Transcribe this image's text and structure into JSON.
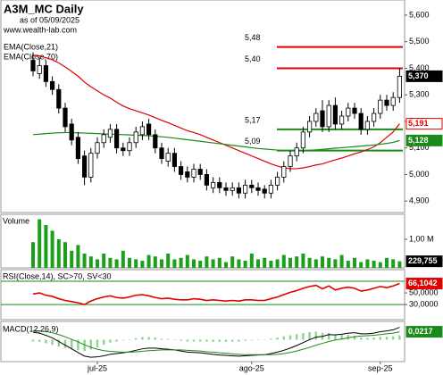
{
  "chart_data": [
    {
      "type": "candlestick",
      "title": "A3M_MC Daily",
      "subtitle": "as of 05/09/2025",
      "source": "www.wealth-lab.com",
      "categories": [
        null,
        null,
        null,
        null,
        null,
        null,
        null,
        null,
        null,
        null,
        "jul-25",
        null,
        null,
        null,
        null,
        null,
        null,
        null,
        null,
        null,
        null,
        null,
        null,
        null,
        null,
        null,
        null,
        null,
        null,
        null,
        null,
        null,
        null,
        null,
        "ago-25",
        null,
        null,
        null,
        null,
        null,
        null,
        null,
        null,
        null,
        null,
        null,
        null,
        null,
        null,
        null,
        null,
        null,
        null,
        null,
        "sep-25",
        null,
        null,
        null
      ],
      "open": [
        5430,
        5380,
        5410,
        5350,
        5320,
        5250,
        5190,
        5140,
        5070,
        4990,
        5080,
        5120,
        5140,
        5170,
        5100,
        5090,
        5120,
        5150,
        5190,
        5150,
        5100,
        5050,
        5080,
        5030,
        5010,
        4990,
        5020,
        5000,
        4950,
        4970,
        4950,
        4940,
        4950,
        4930,
        4960,
        4950,
        4945,
        4930,
        4960,
        4990,
        5030,
        5070,
        5100,
        5160,
        5200,
        5240,
        5180,
        5260,
        5190,
        5220,
        5250,
        5230,
        5170,
        5200,
        5230,
        5280,
        5260,
        5290
      ],
      "high": [
        5460,
        5440,
        5430,
        5370,
        5340,
        5270,
        5210,
        5160,
        5090,
        5100,
        5140,
        5170,
        5190,
        5190,
        5120,
        5140,
        5180,
        5200,
        5210,
        5170,
        5120,
        5100,
        5100,
        5050,
        5030,
        5040,
        5040,
        5020,
        4990,
        4990,
        4970,
        4970,
        4970,
        4980,
        4980,
        4970,
        4960,
        4980,
        5010,
        5050,
        5090,
        5120,
        5180,
        5220,
        5250,
        5280,
        5280,
        5290,
        5240,
        5270,
        5270,
        5250,
        5220,
        5250,
        5300,
        5300,
        5310,
        5400
      ],
      "low": [
        5370,
        5360,
        5330,
        5300,
        5230,
        5160,
        5110,
        5040,
        4960,
        4970,
        5060,
        5100,
        5120,
        5080,
        5070,
        5070,
        5100,
        5130,
        5130,
        5080,
        5040,
        5030,
        5010,
        4980,
        4970,
        4970,
        4980,
        4940,
        4930,
        4930,
        4920,
        4920,
        4910,
        4910,
        4930,
        4920,
        4910,
        4910,
        4940,
        4970,
        5010,
        5050,
        5080,
        5140,
        5180,
        5160,
        5160,
        5170,
        5170,
        5200,
        5210,
        5150,
        5150,
        5180,
        5210,
        5240,
        5240,
        5270
      ],
      "close": [
        5390,
        5410,
        5350,
        5320,
        5250,
        5180,
        5130,
        5060,
        4990,
        5080,
        5120,
        5150,
        5170,
        5100,
        5090,
        5120,
        5160,
        5180,
        5150,
        5100,
        5060,
        5080,
        5030,
        5000,
        4990,
        5020,
        5000,
        4960,
        4970,
        4950,
        4940,
        4950,
        4930,
        4960,
        4950,
        4940,
        4930,
        4960,
        4990,
        5030,
        5070,
        5100,
        5160,
        5200,
        5230,
        5180,
        5260,
        5190,
        5220,
        5250,
        5230,
        5170,
        5200,
        5230,
        5280,
        5260,
        5290,
        5370
      ],
      "close_last_label": "5,370",
      "series": [
        {
          "name": "EMA(Close,21)",
          "color": "#e00000",
          "last_label": "5,191",
          "values": [
            5450,
            5446,
            5440,
            5432,
            5420,
            5405,
            5388,
            5370,
            5348,
            5330,
            5315,
            5300,
            5288,
            5272,
            5258,
            5248,
            5240,
            5232,
            5224,
            5214,
            5204,
            5195,
            5185,
            5175,
            5165,
            5158,
            5150,
            5140,
            5130,
            5120,
            5110,
            5100,
            5090,
            5080,
            5070,
            5060,
            5050,
            5040,
            5032,
            5025,
            5022,
            5022,
            5025,
            5030,
            5036,
            5040,
            5048,
            5055,
            5062,
            5070,
            5078,
            5085,
            5094,
            5104,
            5120,
            5140,
            5160,
            5191
          ]
        },
        {
          "name": "EMA(Close,70)",
          "color": "#1a8a1a",
          "last_label": "5,128",
          "values": [
            5150,
            5152,
            5154,
            5156,
            5157,
            5158,
            5158,
            5157,
            5156,
            5155,
            5154,
            5153,
            5152,
            5151,
            5150,
            5149,
            5148,
            5147,
            5146,
            5144,
            5142,
            5140,
            5137,
            5134,
            5131,
            5128,
            5125,
            5122,
            5119,
            5116,
            5113,
            5110,
            5107,
            5104,
            5101,
            5098,
            5096,
            5094,
            5092,
            5090,
            5089,
            5089,
            5090,
            5091,
            5093,
            5095,
            5097,
            5099,
            5101,
            5103,
            5105,
            5107,
            5109,
            5111,
            5114,
            5117,
            5121,
            5128
          ]
        }
      ],
      "levels": [
        {
          "value": 5480,
          "label": "5,48",
          "color": "#e00000"
        },
        {
          "value": 5400,
          "label": "5,40",
          "color": "#e00000"
        },
        {
          "value": 5170,
          "label": "5,17",
          "color": "#1a8a1a"
        },
        {
          "value": 5090,
          "label": "5,09",
          "color": "#1a8a1a"
        }
      ],
      "ylim": [
        4857,
        5657
      ],
      "yticks": [
        {
          "value": 5600,
          "label": "5,600"
        },
        {
          "value": 5500,
          "label": "5,500"
        },
        {
          "value": 5400,
          "label": "5,400"
        },
        {
          "value": 5300,
          "label": "5,300"
        },
        {
          "value": 5200,
          "label": "5,200"
        },
        {
          "value": 5100,
          "label": "5,100"
        },
        {
          "value": 5000,
          "label": "5,000"
        },
        {
          "value": 4900,
          "label": "4,900"
        }
      ]
    },
    {
      "type": "bar",
      "title": "Volume",
      "color": "#1aa01a",
      "last_label": "229,755",
      "values": [
        900000,
        1700000,
        1500000,
        1300000,
        1000000,
        900000,
        600000,
        800000,
        500000,
        400000,
        300000,
        500000,
        350000,
        300000,
        600000,
        350000,
        300000,
        250000,
        450000,
        400000,
        300000,
        500000,
        300000,
        350000,
        450000,
        300000,
        250000,
        400000,
        300000,
        350000,
        200000,
        400000,
        300000,
        250000,
        500000,
        300000,
        350000,
        250000,
        300000,
        450000,
        350000,
        400000,
        500000,
        350000,
        300000,
        400000,
        350000,
        300000,
        450000,
        250000,
        350000,
        200000,
        300000,
        250000,
        200000,
        350000,
        300000,
        229755
      ],
      "ylim": [
        0,
        1875000
      ],
      "yticks": [
        {
          "value": 1000000,
          "label": "1,00 M"
        }
      ]
    },
    {
      "type": "line",
      "title": "RSI(Close,14), SC>70, SV<30",
      "series": [
        {
          "color": "#e00000",
          "last_label": "66,1042",
          "values": [
            48,
            50,
            46,
            44,
            40,
            37,
            35,
            33,
            30,
            36,
            40,
            43,
            45,
            42,
            41,
            43,
            46,
            47,
            45,
            42,
            40,
            41,
            39,
            38,
            38,
            40,
            39,
            37,
            38,
            37,
            36,
            37,
            36,
            38,
            38,
            37,
            37,
            40,
            43,
            47,
            51,
            54,
            58,
            61,
            63,
            57,
            62,
            55,
            58,
            60,
            58,
            53,
            55,
            58,
            61,
            59,
            62,
            66.1042
          ]
        }
      ],
      "guides": [
        70,
        30
      ],
      "guide_color": "#1a8a1a",
      "ylim": [
        4,
        90
      ],
      "yticks": [
        {
          "value": 50,
          "label": "50,0000"
        },
        {
          "value": 30,
          "label": "30,0000"
        }
      ]
    },
    {
      "type": "macd",
      "title": "MACD(12,26,9)",
      "histogram": [
        -0.005,
        -0.006,
        -0.01,
        -0.014,
        -0.019,
        -0.023,
        -0.026,
        -0.029,
        -0.031,
        -0.027,
        -0.021,
        -0.014,
        -0.008,
        -0.005,
        -0.002,
        0.001,
        0.004,
        0.007,
        0.007,
        0.006,
        0.003,
        0.002,
        0,
        -0.003,
        -0.005,
        -0.005,
        -0.005,
        -0.005,
        -0.006,
        -0.006,
        -0.006,
        -0.005,
        -0.005,
        -0.003,
        -0.002,
        -0.001,
        0,
        0.003,
        0.006,
        0.009,
        0.012,
        0.015,
        0.018,
        0.021,
        0.022,
        0.019,
        0.019,
        0.014,
        0.013,
        0.013,
        0.011,
        0.006,
        0.005,
        0.006,
        0.008,
        0.008,
        0.009,
        0.0123
      ],
      "histogram_color": "#8fd18f",
      "series": [
        {
          "color": "#000000",
          "values": [
            0.02,
            0.018,
            0.012,
            0.005,
            -0.005,
            -0.015,
            -0.025,
            -0.035,
            -0.045,
            -0.048,
            -0.047,
            -0.044,
            -0.04,
            -0.038,
            -0.036,
            -0.033,
            -0.029,
            -0.025,
            -0.023,
            -0.023,
            -0.025,
            -0.026,
            -0.028,
            -0.031,
            -0.034,
            -0.035,
            -0.036,
            -0.038,
            -0.04,
            -0.042,
            -0.043,
            -0.044,
            -0.045,
            -0.044,
            -0.043,
            -0.042,
            -0.041,
            -0.038,
            -0.034,
            -0.029,
            -0.023,
            -0.016,
            -0.008,
            0,
            0.007,
            0.009,
            0.014,
            0.013,
            0.015,
            0.018,
            0.019,
            0.016,
            0.016,
            0.018,
            0.022,
            0.024,
            0.027,
            0.034
          ]
        },
        {
          "color": "#1a8a1a",
          "last_label": "0,0217",
          "values": [
            0.025,
            0.024,
            0.022,
            0.019,
            0.014,
            0.008,
            0.001,
            -0.006,
            -0.014,
            -0.021,
            -0.026,
            -0.03,
            -0.032,
            -0.033,
            -0.034,
            -0.034,
            -0.033,
            -0.032,
            -0.03,
            -0.029,
            -0.028,
            -0.028,
            -0.028,
            -0.028,
            -0.029,
            -0.03,
            -0.031,
            -0.033,
            -0.034,
            -0.036,
            -0.037,
            -0.039,
            -0.04,
            -0.041,
            -0.041,
            -0.041,
            -0.041,
            -0.041,
            -0.04,
            -0.038,
            -0.035,
            -0.031,
            -0.026,
            -0.021,
            -0.015,
            -0.01,
            -0.005,
            -0.001,
            0.002,
            0.005,
            0.008,
            0.01,
            0.011,
            0.012,
            0.014,
            0.016,
            0.018,
            0.0217
          ]
        }
      ],
      "ylim": [
        -0.06,
        0.05
      ]
    }
  ]
}
